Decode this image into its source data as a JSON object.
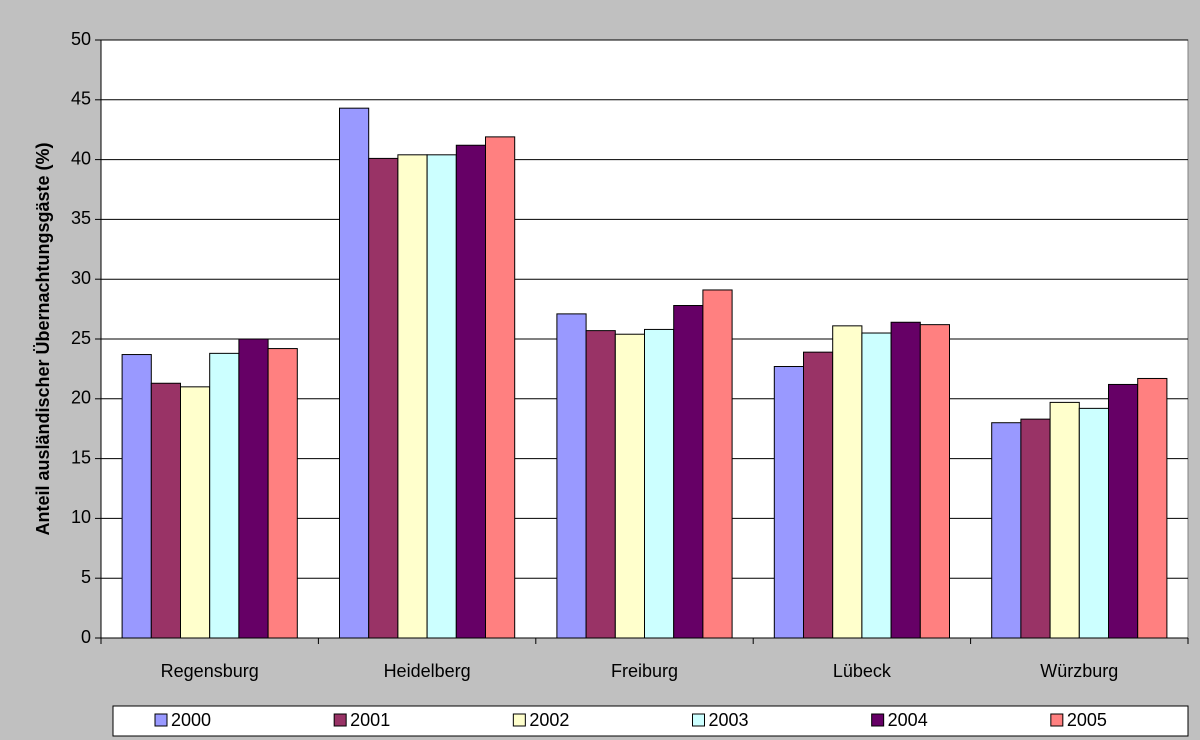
{
  "chart_data": {
    "type": "bar",
    "y_label": "Anteil ausländischer Übernachtungsgäste (%)",
    "categories": [
      "Regensburg",
      "Heidelberg",
      "Freiburg",
      "Lübeck",
      "Würzburg"
    ],
    "series": [
      {
        "name": "2000",
        "color": "#9999ff",
        "values": [
          23.7,
          44.3,
          27.1,
          22.7,
          18.0
        ]
      },
      {
        "name": "2001",
        "color": "#993366",
        "values": [
          21.3,
          40.1,
          25.7,
          23.9,
          18.3
        ]
      },
      {
        "name": "2002",
        "color": "#ffffcc",
        "values": [
          21.0,
          40.4,
          25.4,
          26.1,
          19.7
        ]
      },
      {
        "name": "2003",
        "color": "#ccffff",
        "values": [
          23.8,
          40.4,
          25.8,
          25.5,
          19.2
        ]
      },
      {
        "name": "2004",
        "color": "#660066",
        "values": [
          25.0,
          41.2,
          27.8,
          26.4,
          21.2
        ]
      },
      {
        "name": "2005",
        "color": "#ff8080",
        "values": [
          24.2,
          41.9,
          29.1,
          26.2,
          21.7
        ]
      }
    ],
    "ylim": [
      0,
      50
    ],
    "yticks": [
      0,
      5,
      10,
      15,
      20,
      25,
      30,
      35,
      40,
      45,
      50
    ],
    "grid": true,
    "legend": "bottom"
  }
}
